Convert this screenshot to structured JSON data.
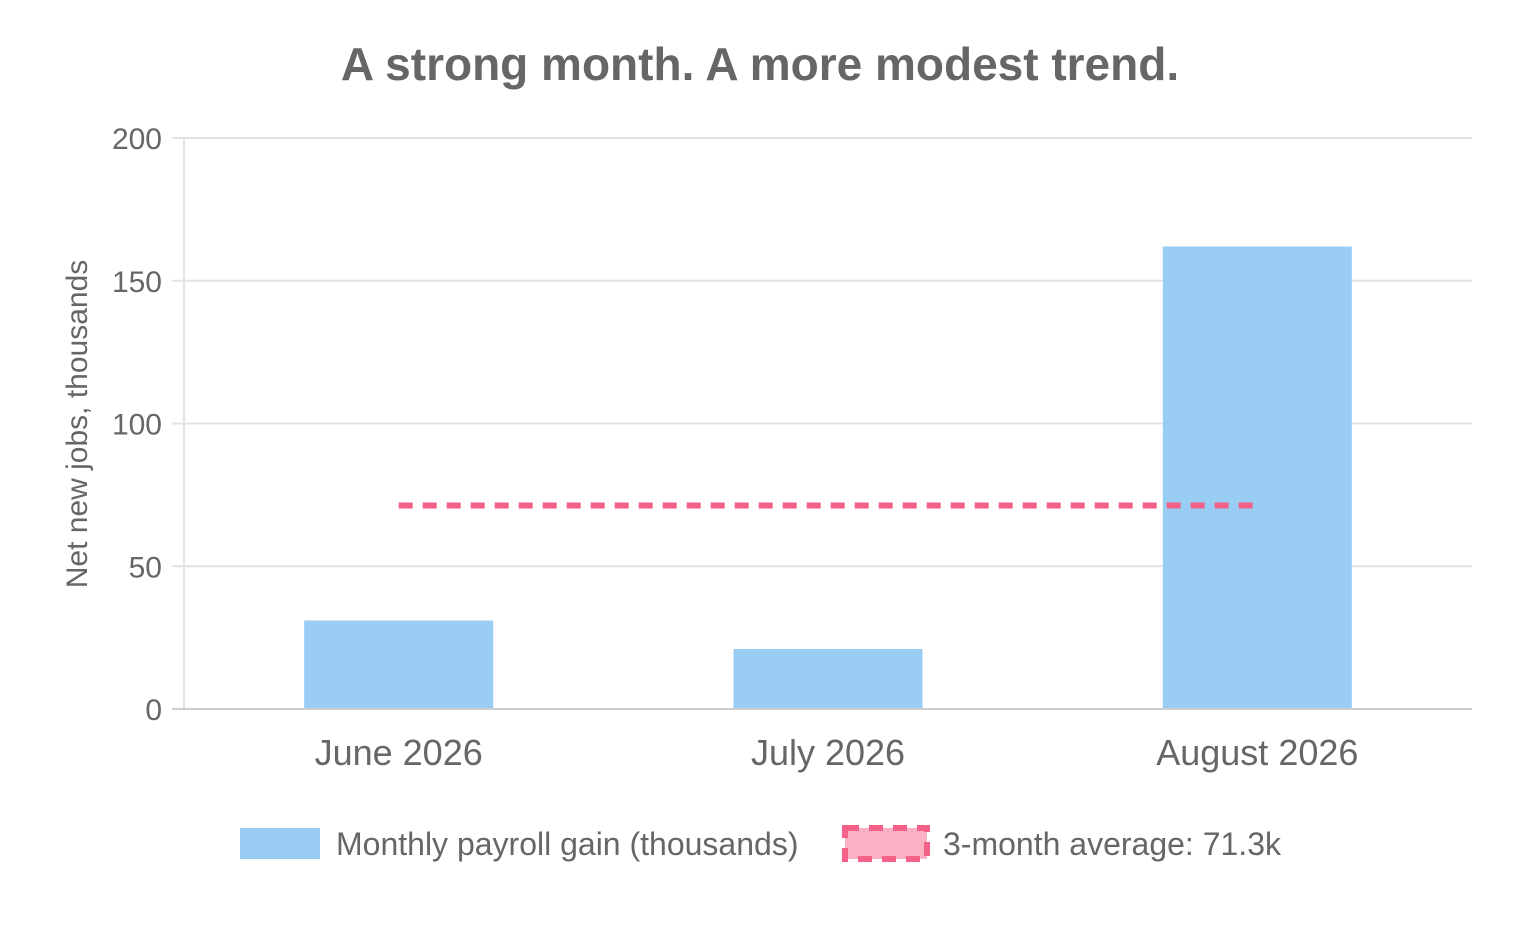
{
  "chart_data": {
    "type": "bar",
    "title": "A strong month. A more modest trend.",
    "xlabel": "",
    "ylabel": "Net new jobs, thousands",
    "categories": [
      "June 2026",
      "July 2026",
      "August 2026"
    ],
    "series": [
      {
        "name": "Monthly payroll gain (thousands)",
        "type": "bar",
        "values": [
          31,
          21,
          162
        ],
        "color": "#8ec8f2"
      },
      {
        "name": "3-month average: 71.3k",
        "type": "line",
        "style": "dashed",
        "values": [
          71.3,
          71.3,
          71.3
        ],
        "color": "#f36088",
        "fill_color": "#fbb0c3"
      }
    ],
    "ylim": [
      0,
      200
    ],
    "yticks": [
      "0",
      "50",
      "100",
      "150",
      "200"
    ],
    "grid": true,
    "legend_position": "bottom"
  }
}
